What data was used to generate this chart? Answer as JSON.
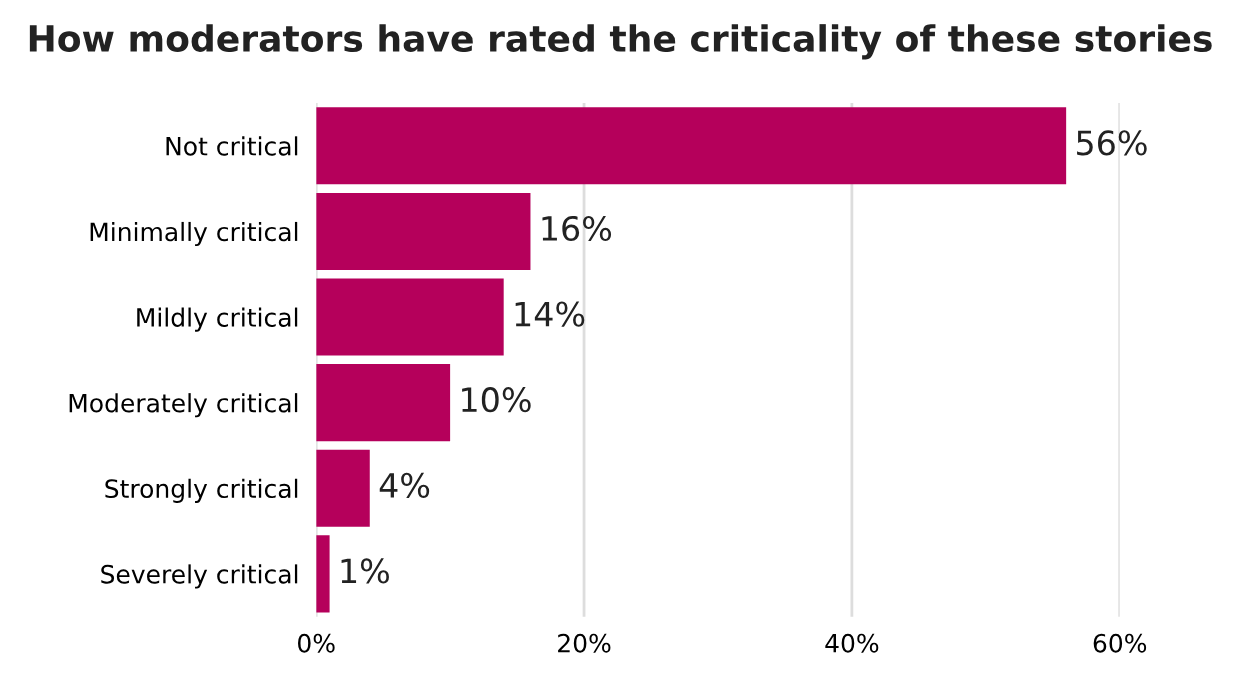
{
  "chart_data": {
    "type": "bar",
    "orientation": "horizontal",
    "title": "How moderators have rated the criticality of these stories",
    "categories": [
      "Not critical",
      "Minimally critical",
      "Mildly critical",
      "Moderately critical",
      "Strongly critical",
      "Severely critical"
    ],
    "values": [
      56,
      16,
      14,
      10,
      4,
      1
    ],
    "color": "#b5005b",
    "value_labels": [
      "56%",
      "16%",
      "14%",
      "10%",
      "4%",
      "1%"
    ],
    "xlim": [
      0,
      60
    ],
    "xticks": [
      {
        "value": 0,
        "label": "0%"
      },
      {
        "value": 20,
        "label": "20%"
      },
      {
        "value": 40,
        "label": "40%"
      },
      {
        "value": 60,
        "label": "60%"
      }
    ],
    "grid": "x",
    "legend": false
  }
}
